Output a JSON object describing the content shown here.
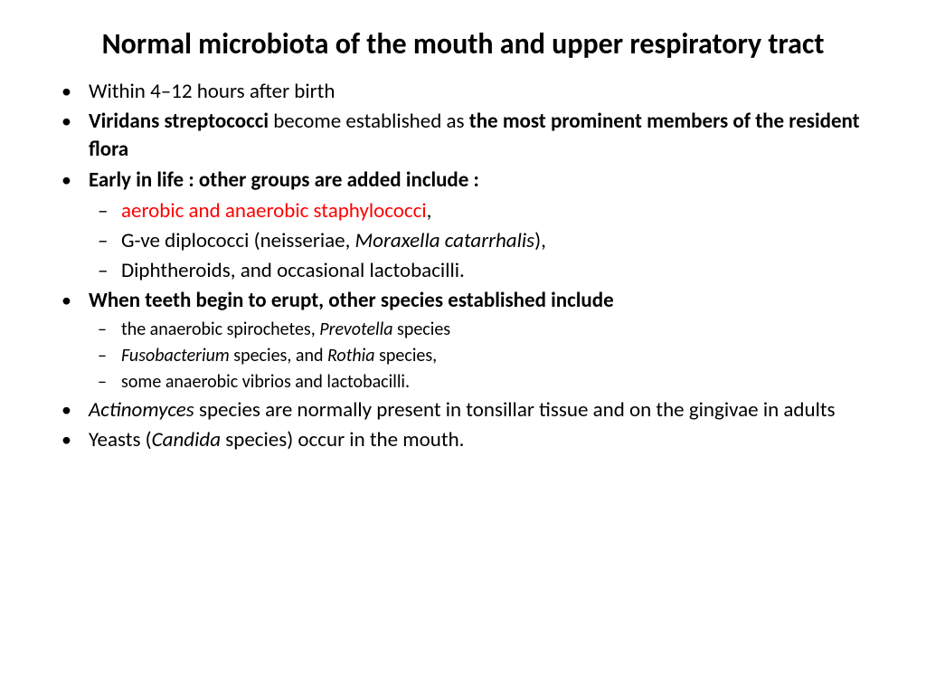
{
  "title": "Normal microbiota of the mouth and upper respiratory tract",
  "b1": "Within 4–12 hours after birth",
  "b2a": " Viridans streptococci ",
  "b2b": "become established as ",
  "b2c": "the most prominent members of the resident flora",
  "b3": "Early in life : other groups are added include :",
  "s3a": "aerobic and anaerobic staphylococci",
  "s3a_tail": ",",
  "s3b_a": "G-ve diplococci (neisseriae, ",
  "s3b_b": "Moraxella catarrhalis",
  "s3b_c": "),",
  "s3c": "Diphtheroids, and occasional lactobacilli.",
  "b4": "When teeth begin to erupt, other species established include",
  "s4a_a": "the anaerobic spirochetes, ",
  "s4a_b": "Prevotella ",
  "s4a_c": "species",
  "s4b_a": "Fusobacterium ",
  "s4b_b": "species, and ",
  "s4b_c": "Rothia ",
  "s4b_d": "species,",
  "s4c": "some anaerobic vibrios and lactobacilli.",
  "b5_a": " Actinomyces ",
  "b5_b": "species are normally present in tonsillar tissue and on the gingivae in adults",
  "b6_a": "Yeasts (",
  "b6_b": "Candida ",
  "b6_c": "species) occur in the mouth.",
  "style": {
    "background": "#ffffff",
    "text_color": "#000000",
    "highlight_color": "#ff0000",
    "title_fontsize": 32,
    "body_fontsize": 23,
    "sub_small_fontsize": 20,
    "font_family": "Calibri"
  }
}
